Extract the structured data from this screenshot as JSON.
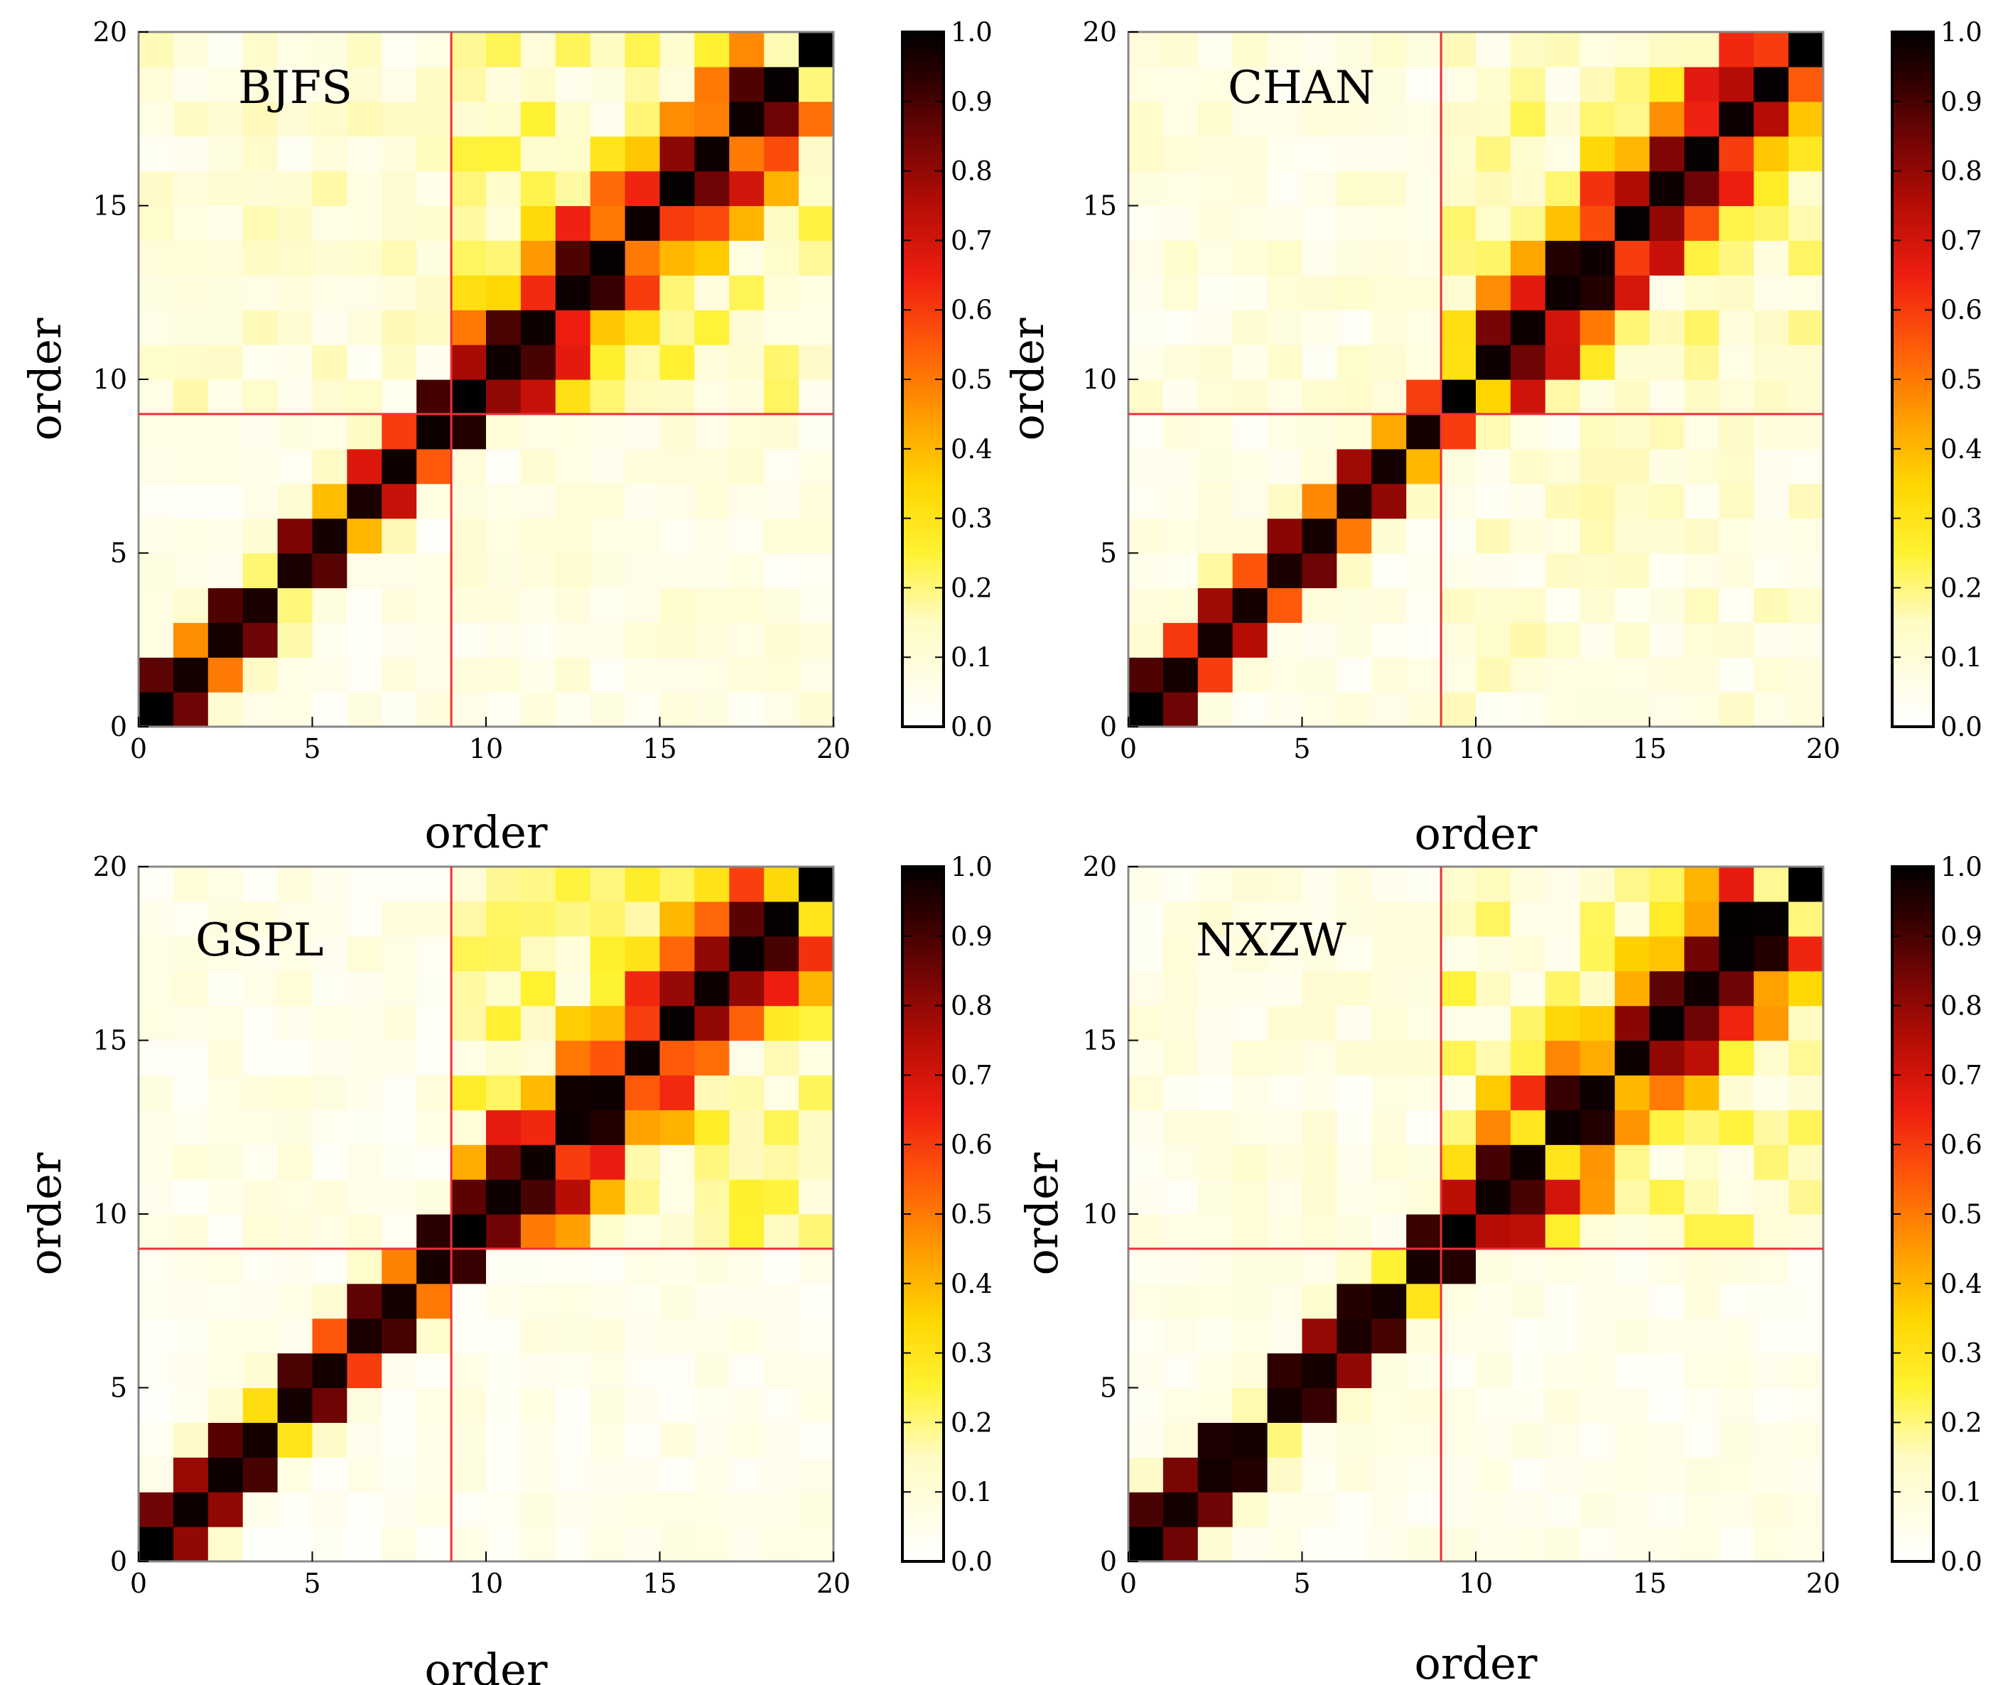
{
  "chart_data": [
    {
      "type": "heatmap",
      "title": "BJFS",
      "xlabel": "order",
      "ylabel": "order",
      "xlim": [
        0,
        20
      ],
      "ylim": [
        0,
        20
      ],
      "xticks": [
        "0",
        "5",
        "10",
        "15",
        "20"
      ],
      "yticks": [
        "0",
        "5",
        "10",
        "15",
        "20"
      ],
      "reference_lines": {
        "x": 9,
        "y": 9
      },
      "colorbar": {
        "min": 0.0,
        "max": 1.0,
        "ticks": [
          "0.0",
          "0.1",
          "0.2",
          "0.3",
          "0.4",
          "0.5",
          "0.6",
          "0.7",
          "0.8",
          "0.9",
          "1.0"
        ]
      },
      "diagonal": [
        1.0,
        0.97,
        0.97,
        0.96,
        0.96,
        0.97,
        0.96,
        0.98,
        0.98,
        1.0,
        0.98,
        0.98,
        0.98,
        0.99,
        0.98,
        0.99,
        0.98,
        0.98,
        0.99,
        1.0
      ],
      "off_diagonal": [
        0.85,
        0.5,
        0.85,
        0.2,
        0.88,
        0.4,
        0.72,
        0.55,
        0.95,
        0.8,
        0.9,
        0.65,
        0.92,
        0.5,
        0.6
      ],
      "block_level": {
        "low": 0.05,
        "high": 0.15,
        "cross_upper": 0.1,
        "cross_lower": 0.07
      }
    },
    {
      "type": "heatmap",
      "title": "CHAN",
      "xlabel": "order",
      "ylabel": "order",
      "xlim": [
        0,
        20
      ],
      "ylim": [
        0,
        20
      ],
      "xticks": [
        "0",
        "5",
        "10",
        "15",
        "20"
      ],
      "yticks": [
        "0",
        "5",
        "10",
        "15",
        "20"
      ],
      "reference_lines": {
        "x": 9,
        "y": 9
      },
      "colorbar": {
        "min": 0.0,
        "max": 1.0,
        "ticks": [
          "0.0",
          "0.1",
          "0.2",
          "0.3",
          "0.4",
          "0.5",
          "0.6",
          "0.7",
          "0.8",
          "0.9",
          "1.0"
        ]
      },
      "diagonal": [
        1.0,
        0.97,
        0.97,
        0.97,
        0.96,
        0.97,
        0.96,
        0.97,
        0.97,
        1.0,
        0.98,
        0.98,
        0.98,
        0.98,
        0.99,
        0.98,
        0.99,
        0.98,
        0.99,
        1.0
      ],
      "off_diagonal": [
        0.85,
        0.6,
        0.75,
        0.55,
        0.85,
        0.5,
        0.8,
        0.4,
        0.6,
        0.35,
        0.85,
        0.7,
        0.95,
        0.6,
        0.8
      ],
      "block_level": {
        "low": 0.06,
        "high": 0.14,
        "cross_upper": 0.08,
        "cross_lower": 0.1
      }
    },
    {
      "type": "heatmap",
      "title": "GSPL",
      "xlabel": "order",
      "ylabel": "order",
      "xlim": [
        0,
        20
      ],
      "ylim": [
        0,
        20
      ],
      "xticks": [
        "0",
        "5",
        "10",
        "15",
        "20"
      ],
      "yticks": [
        "0",
        "5",
        "10",
        "15",
        "20"
      ],
      "reference_lines": {
        "x": 9,
        "y": 9
      },
      "colorbar": {
        "min": 0.0,
        "max": 1.0,
        "ticks": [
          "0.0",
          "0.1",
          "0.2",
          "0.3",
          "0.4",
          "0.5",
          "0.6",
          "0.7",
          "0.8",
          "0.9",
          "1.0"
        ]
      },
      "diagonal": [
        1.0,
        0.98,
        0.98,
        0.97,
        0.97,
        0.97,
        0.96,
        0.97,
        0.97,
        1.0,
        0.98,
        0.98,
        0.98,
        0.98,
        0.98,
        0.99,
        0.98,
        0.99,
        0.99,
        1.0
      ],
      "off_diagonal": [
        0.8,
        0.8,
        0.9,
        0.3,
        0.85,
        0.6,
        0.9,
        0.5,
        0.92,
        0.85,
        0.9,
        0.6,
        0.95,
        0.55,
        0.55
      ],
      "block_level": {
        "low": 0.04,
        "high": 0.16,
        "cross_upper": 0.06,
        "cross_lower": 0.05
      }
    },
    {
      "type": "heatmap",
      "title": "NXZW",
      "xlabel": "order",
      "ylabel": "order",
      "xlim": [
        0,
        20
      ],
      "ylim": [
        0,
        20
      ],
      "xticks": [
        "0",
        "5",
        "10",
        "15",
        "20"
      ],
      "yticks": [
        "0",
        "5",
        "10",
        "15",
        "20"
      ],
      "reference_lines": {
        "x": 9,
        "y": 9
      },
      "colorbar": {
        "min": 0.0,
        "max": 1.0,
        "ticks": [
          "0.0",
          "0.1",
          "0.2",
          "0.3",
          "0.4",
          "0.5",
          "0.6",
          "0.7",
          "0.8",
          "0.9",
          "1.0"
        ]
      },
      "diagonal": [
        1.0,
        0.97,
        0.97,
        0.97,
        0.97,
        0.97,
        0.96,
        0.97,
        0.97,
        1.0,
        0.98,
        0.98,
        0.98,
        0.98,
        0.98,
        0.99,
        0.98,
        0.99,
        0.99,
        1.0
      ],
      "off_diagonal": [
        0.85,
        0.85,
        0.95,
        0.2,
        0.92,
        0.8,
        0.9,
        0.3,
        0.95,
        0.75,
        0.9,
        0.3,
        0.95,
        0.4,
        0.8
      ],
      "block_level": {
        "low": 0.05,
        "high": 0.15,
        "cross_upper": 0.07,
        "cross_lower": 0.05
      }
    }
  ],
  "colors": {
    "reference_line": "#e8323a",
    "axis": "#000000",
    "frame": "#888888"
  }
}
